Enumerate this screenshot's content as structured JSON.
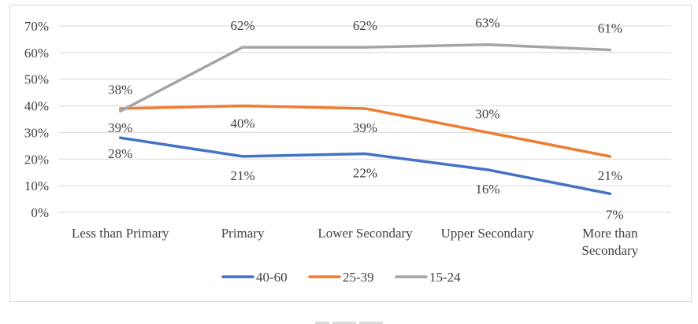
{
  "chart_data": {
    "type": "line",
    "title": "",
    "xlabel": "",
    "ylabel": "",
    "ylim": [
      0,
      70
    ],
    "yticks": [
      "0%",
      "10%",
      "20%",
      "30%",
      "40%",
      "50%",
      "60%",
      "70%"
    ],
    "grid": true,
    "legend_position": "bottom",
    "categories": [
      "Less than Primary",
      "Primary",
      "Lower Secondary",
      "Upper Secondary",
      "More than Secondary"
    ],
    "series": [
      {
        "name": "40-60",
        "color": "#4472c4",
        "values": [
          28,
          21,
          22,
          16,
          7
        ],
        "labels": [
          "28%",
          "21%",
          "22%",
          "16%",
          "7%"
        ]
      },
      {
        "name": "25-39",
        "color": "#ed7d31",
        "values": [
          39,
          40,
          39,
          30,
          21
        ],
        "labels": [
          "39%",
          "40%",
          "39%",
          "30%",
          "21%"
        ]
      },
      {
        "name": "15-24",
        "color": "#a5a5a5",
        "values": [
          38,
          62,
          62,
          63,
          61
        ],
        "labels": [
          "38%",
          "62%",
          "62%",
          "63%",
          "61%"
        ]
      }
    ]
  }
}
